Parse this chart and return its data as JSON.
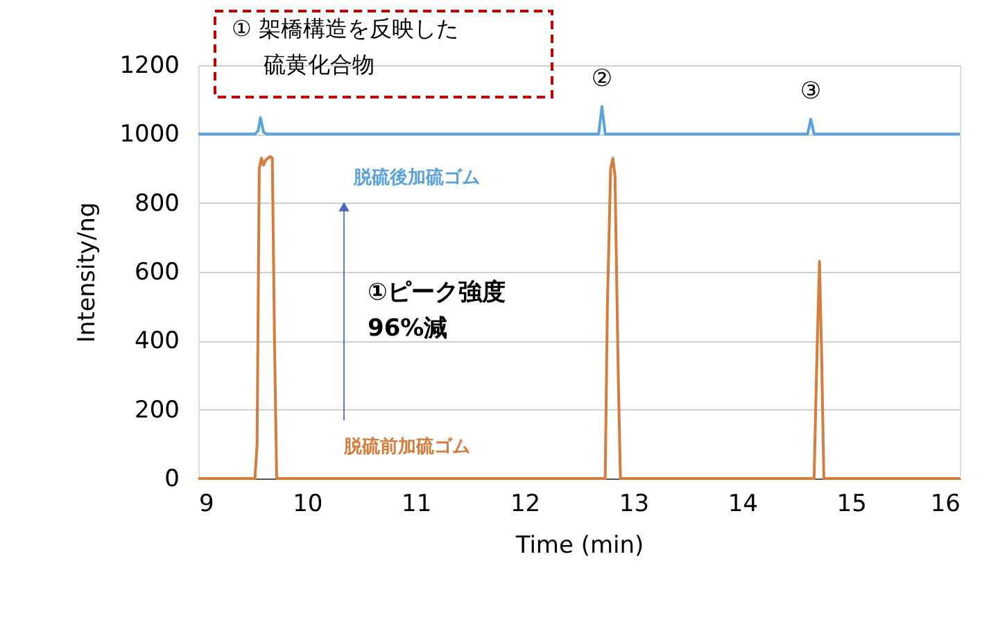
{
  "chart_data": {
    "type": "line",
    "xlabel": "Time (min)",
    "ylabel": "Intensity/ng",
    "xlim": [
      9,
      16
    ],
    "xticks": [
      9,
      10,
      11,
      12,
      13,
      14,
      15,
      16
    ],
    "ylim": [
      0,
      1200
    ],
    "yticks": [
      0,
      200,
      400,
      600,
      800,
      1000,
      1200
    ],
    "grid": "y",
    "line_style": "solid",
    "marker": "none",
    "series": [
      {
        "name": "脱硫後加硫ゴム",
        "color": "#5ba3dc",
        "x": [
          9,
          9.52,
          9.55,
          9.57,
          9.6,
          9.63,
          12.68,
          12.71,
          12.74,
          14.6,
          14.63,
          14.66,
          16
        ],
        "values": [
          1000,
          1000,
          1010,
          1048,
          1005,
          1000,
          1000,
          1080,
          1000,
          1000,
          1043,
          1000,
          1000
        ]
      },
      {
        "name": "脱硫前加硫ゴム",
        "color": "#d67c3c",
        "x": [
          9,
          9.52,
          9.54,
          9.56,
          9.58,
          9.6,
          9.62,
          9.66,
          9.68,
          9.7,
          9.72,
          11,
          11.2,
          12.74,
          12.76,
          12.79,
          12.81,
          12.83,
          12.86,
          12.88,
          14.66,
          14.69,
          14.71,
          14.73,
          14.75,
          16
        ],
        "values": [
          0,
          0,
          100,
          900,
          930,
          910,
          925,
          935,
          930,
          400,
          0,
          0,
          0,
          0,
          500,
          900,
          930,
          880,
          300,
          0,
          0,
          400,
          630,
          350,
          0,
          0
        ]
      }
    ],
    "annotations": [
      "① 架橋構造を反映した",
      "硫黄化合物",
      {
        "text": "②",
        "x": 12.71,
        "y": 1080
      },
      {
        "text": "③",
        "x": 14.63,
        "y": 1043
      },
      "①ピーク強度\n96%減"
    ]
  }
}
